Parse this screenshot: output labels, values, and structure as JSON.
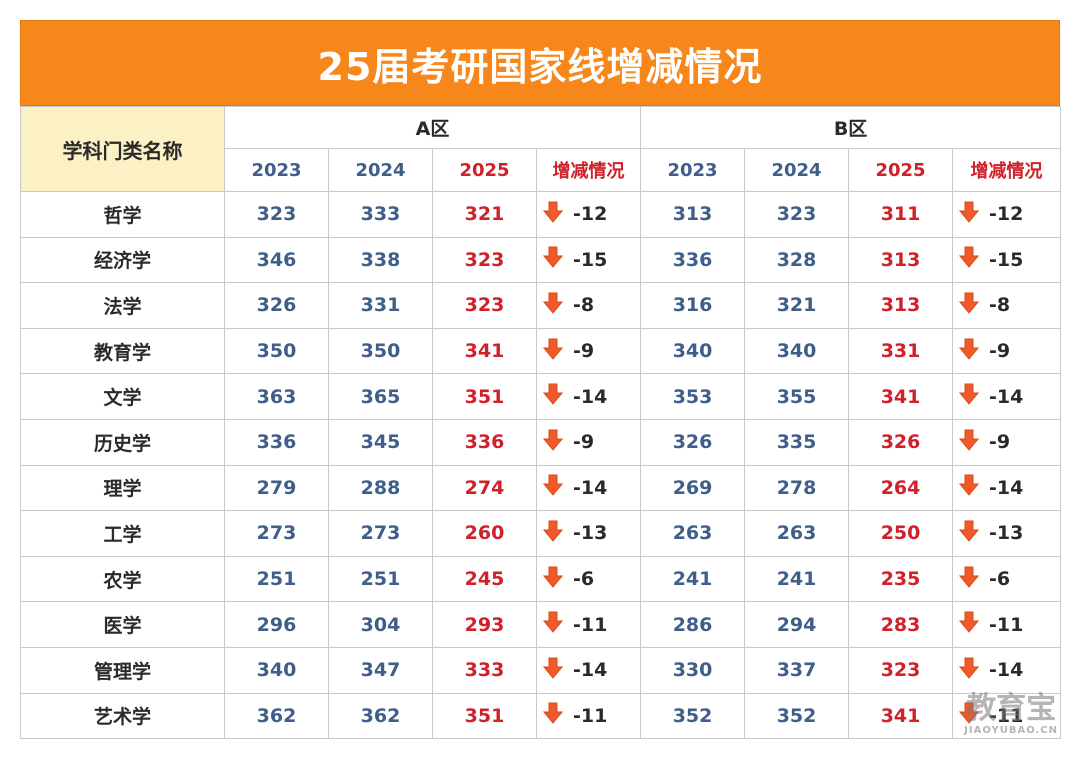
{
  "title": "25届考研国家线增减情况",
  "header": {
    "category_label": "学科门类名称",
    "zone_a": "A区",
    "zone_b": "B区",
    "years": [
      "2023",
      "2024",
      "2025"
    ],
    "change_label": "增减情况"
  },
  "rows": [
    {
      "subject": "哲学",
      "a": [
        "323",
        "333",
        "321"
      ],
      "a_chg": "-12",
      "b": [
        "313",
        "323",
        "311"
      ],
      "b_chg": "-12"
    },
    {
      "subject": "经济学",
      "a": [
        "346",
        "338",
        "323"
      ],
      "a_chg": "-15",
      "b": [
        "336",
        "328",
        "313"
      ],
      "b_chg": "-15"
    },
    {
      "subject": "法学",
      "a": [
        "326",
        "331",
        "323"
      ],
      "a_chg": "-8",
      "b": [
        "316",
        "321",
        "313"
      ],
      "b_chg": "-8"
    },
    {
      "subject": "教育学",
      "a": [
        "350",
        "350",
        "341"
      ],
      "a_chg": "-9",
      "b": [
        "340",
        "340",
        "331"
      ],
      "b_chg": "-9"
    },
    {
      "subject": "文学",
      "a": [
        "363",
        "365",
        "351"
      ],
      "a_chg": "-14",
      "b": [
        "353",
        "355",
        "341"
      ],
      "b_chg": "-14"
    },
    {
      "subject": "历史学",
      "a": [
        "336",
        "345",
        "336"
      ],
      "a_chg": "-9",
      "b": [
        "326",
        "335",
        "326"
      ],
      "b_chg": "-9"
    },
    {
      "subject": "理学",
      "a": [
        "279",
        "288",
        "274"
      ],
      "a_chg": "-14",
      "b": [
        "269",
        "278",
        "264"
      ],
      "b_chg": "-14"
    },
    {
      "subject": "工学",
      "a": [
        "273",
        "273",
        "260"
      ],
      "a_chg": "-13",
      "b": [
        "263",
        "263",
        "250"
      ],
      "b_chg": "-13"
    },
    {
      "subject": "农学",
      "a": [
        "251",
        "251",
        "245"
      ],
      "a_chg": "-6",
      "b": [
        "241",
        "241",
        "235"
      ],
      "b_chg": "-6"
    },
    {
      "subject": "医学",
      "a": [
        "296",
        "304",
        "293"
      ],
      "a_chg": "-11",
      "b": [
        "286",
        "294",
        "283"
      ],
      "b_chg": "-11"
    },
    {
      "subject": "管理学",
      "a": [
        "340",
        "347",
        "333"
      ],
      "a_chg": "-14",
      "b": [
        "330",
        "337",
        "323"
      ],
      "b_chg": "-14"
    },
    {
      "subject": "艺术学",
      "a": [
        "362",
        "362",
        "351"
      ],
      "a_chg": "-11",
      "b": [
        "352",
        "352",
        "341"
      ],
      "b_chg": "-11"
    }
  ],
  "watermark": {
    "main": "教育宝",
    "sub": "JIAOYUBAO.CN"
  },
  "icons": {
    "change": "down-arrow-icon"
  },
  "colors": {
    "title_bg": "#f7861b",
    "header_bg": "#fcf1c4",
    "old_value": "#3f5f8a",
    "new_value": "#d0202a",
    "arrow": "#f05a28"
  }
}
